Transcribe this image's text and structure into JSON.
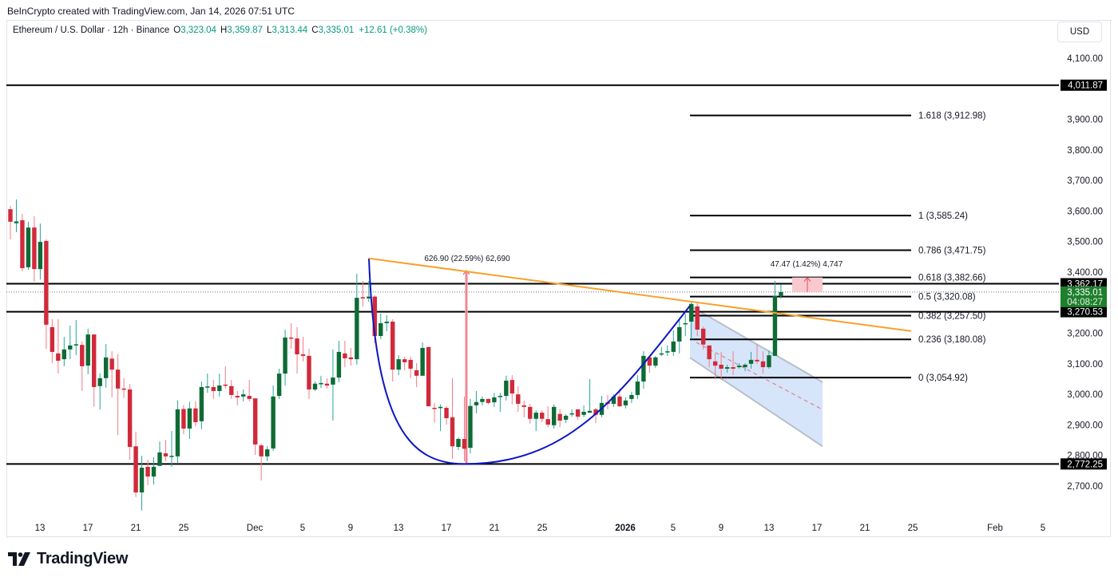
{
  "credit": "BeInCrypto created with TradingView.com, Jan 14, 2026 07:51 UTC",
  "legend": {
    "symbol": "Ethereum / U.S. Dollar · 12h · Binance",
    "open_label": "O",
    "open": "3,323.04",
    "high_label": "H",
    "high": "3,359.87",
    "low_label": "L",
    "low": "3,313.44",
    "close_label": "C",
    "close": "3,335.01",
    "change": "+12.61 (+0.38%)"
  },
  "currency": "USD",
  "logo_text": "TradingView",
  "colors": {
    "up": "#0e6b35",
    "down": "#d02a3a",
    "up_wick": "#26a69a",
    "down_wick": "#f07c86",
    "orange_trend": "#f7a12c",
    "blue_curve": "#0c15c4",
    "channel_fill": "#cfe0f8",
    "channel_edge": "#b8bfcc",
    "measure_pink": "#f7b6bd",
    "last_price_bg": "#1e7f2c"
  },
  "chart_data": {
    "type": "candlestick",
    "title": "Ethereum / U.S. Dollar · 12h · Binance",
    "xlabel": "",
    "ylabel": "USD",
    "ylim": [
      2640,
      4160
    ],
    "y_ticks": [
      "4,100.00",
      "3,900.00",
      "3,800.00",
      "3,700.00",
      "3,600.00",
      "3,500.00",
      "3,400.00",
      "3,200.00",
      "3,100.00",
      "3,000.00",
      "2,900.00",
      "2,800.00",
      "2,700.00"
    ],
    "y_tick_values": [
      4100,
      3900,
      3800,
      3700,
      3600,
      3500,
      3400,
      3200,
      3100,
      3000,
      2900,
      2800,
      2700
    ],
    "x_ticks": [
      {
        "label": "13",
        "x": 50,
        "bold": false
      },
      {
        "label": "17",
        "x": 110,
        "bold": false
      },
      {
        "label": "21",
        "x": 170,
        "bold": false
      },
      {
        "label": "25",
        "x": 230,
        "bold": false
      },
      {
        "label": "Dec",
        "x": 319,
        "bold": false
      },
      {
        "label": "5",
        "x": 379,
        "bold": false
      },
      {
        "label": "9",
        "x": 439,
        "bold": false
      },
      {
        "label": "13",
        "x": 499,
        "bold": false
      },
      {
        "label": "17",
        "x": 559,
        "bold": false
      },
      {
        "label": "21",
        "x": 619,
        "bold": false
      },
      {
        "label": "25",
        "x": 679,
        "bold": false
      },
      {
        "label": "2026",
        "x": 783,
        "bold": true
      },
      {
        "label": "5",
        "x": 843,
        "bold": false
      },
      {
        "label": "9",
        "x": 903,
        "bold": false
      },
      {
        "label": "13",
        "x": 963,
        "bold": false
      },
      {
        "label": "17",
        "x": 1023,
        "bold": false
      },
      {
        "label": "21",
        "x": 1083,
        "bold": false
      },
      {
        "label": "25",
        "x": 1143,
        "bold": false
      },
      {
        "label": "Feb",
        "x": 1246,
        "bold": false
      },
      {
        "label": "5",
        "x": 1306,
        "bold": false
      }
    ],
    "candle_start_x": 13,
    "candle_spacing": 7.48,
    "candles": [
      [
        3606,
        3617,
        3507,
        3565
      ],
      [
        3560,
        3638,
        3531,
        3566
      ],
      [
        3570,
        3591,
        3403,
        3413
      ],
      [
        3416,
        3565,
        3408,
        3546
      ],
      [
        3546,
        3583,
        3369,
        3410
      ],
      [
        3410,
        3559,
        3376,
        3499
      ],
      [
        3502,
        3507,
        3149,
        3228
      ],
      [
        3220,
        3246,
        3102,
        3139
      ],
      [
        3134,
        3246,
        3068,
        3110
      ],
      [
        3115,
        3188,
        3092,
        3147
      ],
      [
        3147,
        3225,
        3115,
        3160
      ],
      [
        3162,
        3243,
        3128,
        3164
      ],
      [
        3162,
        3173,
        3011,
        3092
      ],
      [
        3094,
        3215,
        3066,
        3196
      ],
      [
        3196,
        3196,
        2959,
        3024
      ],
      [
        3027,
        3069,
        2950,
        3053
      ],
      [
        3053,
        3165,
        3022,
        3121
      ],
      [
        3117,
        3141,
        2990,
        3081
      ],
      [
        3081,
        3131,
        2867,
        3019
      ],
      [
        3019,
        3053,
        2988,
        3017
      ],
      [
        3016,
        3034,
        2786,
        2828
      ],
      [
        2830,
        2878,
        2664,
        2679
      ],
      [
        2679,
        2799,
        2620,
        2760
      ],
      [
        2763,
        2786,
        2703,
        2731
      ],
      [
        2731,
        2794,
        2705,
        2763
      ],
      [
        2766,
        2846,
        2765,
        2810
      ],
      [
        2807,
        2851,
        2781,
        2797
      ],
      [
        2797,
        2880,
        2763,
        2799
      ],
      [
        2797,
        2980,
        2776,
        2951
      ],
      [
        2952,
        2965,
        2870,
        2888
      ],
      [
        2888,
        2975,
        2854,
        2954
      ],
      [
        2954,
        2977,
        2896,
        2909
      ],
      [
        2912,
        3042,
        2886,
        3024
      ],
      [
        3024,
        3068,
        3005,
        3026
      ],
      [
        3024,
        3047,
        2985,
        3011
      ],
      [
        3011,
        3068,
        2993,
        3029
      ],
      [
        3032,
        3092,
        3019,
        3030
      ],
      [
        3027,
        3047,
        2985,
        2998
      ],
      [
        2995,
        3011,
        2964,
        2990
      ],
      [
        2993,
        3016,
        2977,
        3000
      ],
      [
        2995,
        3047,
        2977,
        2985
      ],
      [
        2987,
        2987,
        2802,
        2836
      ],
      [
        2833,
        2839,
        2718,
        2797
      ],
      [
        2797,
        2831,
        2781,
        2820
      ],
      [
        2823,
        3029,
        2815,
        2993
      ],
      [
        2995,
        3084,
        2985,
        3068
      ],
      [
        3068,
        3212,
        3029,
        3186
      ],
      [
        3186,
        3233,
        3149,
        3183
      ],
      [
        3183,
        3220,
        3068,
        3131
      ],
      [
        3131,
        3188,
        3108,
        3126
      ],
      [
        3126,
        3149,
        2985,
        3016
      ],
      [
        3016,
        3042,
        3011,
        3035
      ],
      [
        3035,
        3061,
        3021,
        3037
      ],
      [
        3035,
        3053,
        3019,
        3029
      ],
      [
        3032,
        3147,
        2914,
        3055
      ],
      [
        3055,
        3175,
        3040,
        3139
      ],
      [
        3134,
        3175,
        3089,
        3118
      ],
      [
        3121,
        3152,
        3094,
        3115
      ],
      [
        3115,
        3395,
        3097,
        3316
      ],
      [
        3318,
        3371,
        3288,
        3316
      ],
      [
        3314,
        3371,
        3303,
        3320
      ],
      [
        3320,
        3324,
        3168,
        3191
      ],
      [
        3191,
        3264,
        3181,
        3233
      ],
      [
        3233,
        3259,
        3207,
        3238
      ],
      [
        3238,
        3246,
        3042,
        3081
      ],
      [
        3081,
        3128,
        3063,
        3115
      ],
      [
        3115,
        3123,
        3079,
        3105
      ],
      [
        3113,
        3123,
        3053,
        3084
      ],
      [
        3079,
        3102,
        3024,
        3061
      ],
      [
        3061,
        3170,
        3061,
        3152
      ],
      [
        3155,
        3155,
        2961,
        2961
      ],
      [
        2956,
        2972,
        2907,
        2953
      ],
      [
        2957,
        2967,
        2880,
        2959
      ],
      [
        2956,
        2961,
        2901,
        2922
      ],
      [
        2925,
        3053,
        2789,
        2830
      ],
      [
        2828,
        2859,
        2818,
        2854
      ],
      [
        2854,
        2993,
        2781,
        2822
      ],
      [
        2825,
        2985,
        2807,
        2962
      ],
      [
        2964,
        3011,
        2938,
        2975
      ],
      [
        2975,
        2993,
        2964,
        2985
      ],
      [
        2985,
        2987,
        2967,
        2972
      ],
      [
        2974,
        3005,
        2959,
        2990
      ],
      [
        2993,
        3005,
        2943,
        2995
      ],
      [
        2995,
        3061,
        2980,
        3045
      ],
      [
        3047,
        3063,
        2967,
        3003
      ],
      [
        3000,
        3027,
        2943,
        2969
      ],
      [
        2964,
        2980,
        2925,
        2959
      ],
      [
        2959,
        2969,
        2904,
        2920
      ],
      [
        2920,
        2948,
        2880,
        2940
      ],
      [
        2940,
        2948,
        2909,
        2920
      ],
      [
        2919,
        2961,
        2893,
        2901
      ],
      [
        2899,
        2967,
        2888,
        2959
      ],
      [
        2936,
        2952,
        2893,
        2914
      ],
      [
        2917,
        2935,
        2906,
        2930
      ],
      [
        2935,
        2951,
        2927,
        2938
      ],
      [
        2951,
        2951,
        2917,
        2927
      ],
      [
        2933,
        2964,
        2925,
        2943
      ],
      [
        2940,
        3050,
        2940,
        2946
      ],
      [
        2951,
        2956,
        2906,
        2933
      ],
      [
        2933,
        2995,
        2925,
        2972
      ],
      [
        2974,
        2998,
        2951,
        2969
      ],
      [
        2969,
        3000,
        2959,
        2993
      ],
      [
        2993,
        3019,
        2959,
        2961
      ],
      [
        2964,
        2990,
        2954,
        2980
      ],
      [
        2985,
        3008,
        2972,
        2998
      ],
      [
        2998,
        3063,
        2985,
        3042
      ],
      [
        3042,
        3141,
        3019,
        3126
      ],
      [
        3121,
        3126,
        3071,
        3094
      ],
      [
        3094,
        3126,
        3087,
        3121
      ],
      [
        3131,
        3155,
        3126,
        3134
      ],
      [
        3139,
        3160,
        3126,
        3141
      ],
      [
        3139,
        3210,
        3126,
        3173
      ],
      [
        3173,
        3249,
        3134,
        3220
      ],
      [
        3230,
        3264,
        3191,
        3233
      ],
      [
        3238,
        3303,
        3181,
        3296
      ],
      [
        3288,
        3298,
        3191,
        3212
      ],
      [
        3215,
        3222,
        3147,
        3163
      ],
      [
        3160,
        3160,
        3089,
        3115
      ],
      [
        3108,
        3134,
        3050,
        3094
      ],
      [
        3097,
        3139,
        3048,
        3084
      ],
      [
        3084,
        3097,
        3071,
        3089
      ],
      [
        3089,
        3141,
        3063,
        3084
      ],
      [
        3089,
        3102,
        3084,
        3094
      ],
      [
        3089,
        3102,
        3076,
        3097
      ],
      [
        3100,
        3139,
        3084,
        3113
      ],
      [
        3113,
        3163,
        3100,
        3108
      ],
      [
        3108,
        3141,
        3068,
        3089
      ],
      [
        3089,
        3144,
        3084,
        3128
      ],
      [
        3126,
        3371,
        3126,
        3322
      ],
      [
        3323,
        3360,
        3313,
        3335
      ]
    ],
    "horizontal_lines": [
      {
        "price": 4011.87,
        "label": "4,011.87"
      },
      {
        "price": 3362.17,
        "label": "3,362.17"
      },
      {
        "price": 3270.53,
        "label": "3,270.53"
      },
      {
        "price": 2772.25,
        "label": "2,772.25"
      }
    ],
    "last_price": {
      "price": 3335.01,
      "label": "3,335.01",
      "countdown": "04:08:27"
    },
    "fibonacci": {
      "x_start": 864,
      "x_end": 1141,
      "levels": [
        {
          "ratio": "1.618",
          "price": 3912.98,
          "label": "1.618 (3,912.98)"
        },
        {
          "ratio": "1",
          "price": 3585.24,
          "label": "1 (3,585.24)"
        },
        {
          "ratio": "0.786",
          "price": 3471.75,
          "label": "0.786 (3,471.75)"
        },
        {
          "ratio": "0.618",
          "price": 3382.66,
          "label": "0.618 (3,382.66)"
        },
        {
          "ratio": "0.5",
          "price": 3320.08,
          "label": "0.5 (3,320.08)"
        },
        {
          "ratio": "0.382",
          "price": 3257.5,
          "label": "0.382 (3,257.50)"
        },
        {
          "ratio": "0.236",
          "price": 3180.08,
          "label": "0.236 (3,180.08)"
        },
        {
          "ratio": "0",
          "price": 3054.92,
          "label": "0 (3,054.92)"
        }
      ]
    },
    "annotations": {
      "cup_depth_measure": "626.90 (22.59%) 62,690",
      "breakout_measure": "47.47 (1.42%) 4,747"
    },
    "trendline": {
      "x1": 462,
      "p1": 3445,
      "x2": 1141,
      "p2": 3207
    },
    "cup_curve": {
      "x_left": 462,
      "p_left": 3445,
      "x_bottom": 582,
      "p_bottom": 2772.25,
      "x_right": 864,
      "p_right": 3290
    },
    "channel": {
      "x1": 864,
      "top1": 3290,
      "bot1": 3120,
      "x2": 1030,
      "top2": 3040,
      "bot2": 2830,
      "mid_x1": 872,
      "mid_p1": 3170,
      "mid_x2": 1030,
      "mid_p2": 2950
    }
  }
}
